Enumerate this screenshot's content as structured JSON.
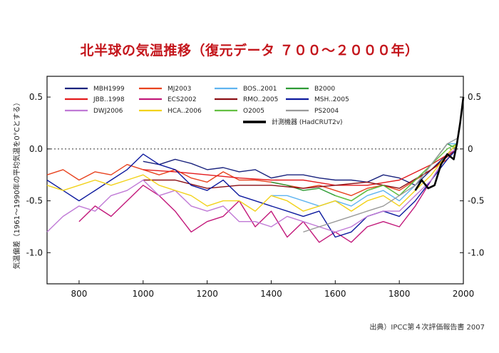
{
  "title": "北半球の気温推移（復元データ ７００〜２０００年）",
  "source": "出典）IPCC第４次評価報告書 2007",
  "chart_data": {
    "type": "line",
    "title": "北半球の気温推移（復元データ ７００〜２０００年）",
    "xlabel": "",
    "ylabel": "気温偏差（1961〜1990年の平均気温を0°Cとする）",
    "xlim": [
      700,
      2000
    ],
    "ylim": [
      -1.3,
      0.7
    ],
    "x_ticks": [
      "800",
      "1000",
      "1200",
      "1400",
      "1600",
      "1800",
      "2000"
    ],
    "y_ticks": [
      "0.5",
      "0.0",
      "-0.5",
      "-1.0"
    ],
    "y_ticks_right": [
      "0.5",
      "0",
      "-0.5",
      "-1.0"
    ],
    "zero_line": "dashed",
    "legend_position": "top-left",
    "series": [
      {
        "name": "MBH1999",
        "color": "#1a237e",
        "x": [
          1000,
          1050,
          1100,
          1150,
          1200,
          1250,
          1300,
          1350,
          1400,
          1450,
          1500,
          1550,
          1600,
          1650,
          1700,
          1750,
          1800,
          1850,
          1900,
          1950,
          1980
        ],
        "y": [
          -0.12,
          -0.15,
          -0.1,
          -0.14,
          -0.2,
          -0.18,
          -0.22,
          -0.2,
          -0.28,
          -0.25,
          -0.25,
          -0.28,
          -0.3,
          -0.3,
          -0.32,
          -0.25,
          -0.28,
          -0.35,
          -0.2,
          -0.05,
          0.05
        ]
      },
      {
        "name": "MJ2003",
        "color": "#e8431f",
        "x": [
          700,
          750,
          800,
          850,
          900,
          950,
          1000,
          1050,
          1100,
          1150,
          1200,
          1250,
          1300,
          1350,
          1400,
          1450,
          1500,
          1550,
          1600,
          1650,
          1700,
          1750,
          1800,
          1850,
          1900,
          1950,
          1980
        ],
        "y": [
          -0.25,
          -0.2,
          -0.3,
          -0.22,
          -0.25,
          -0.15,
          -0.2,
          -0.25,
          -0.2,
          -0.28,
          -0.32,
          -0.22,
          -0.3,
          -0.3,
          -0.32,
          -0.35,
          -0.38,
          -0.35,
          -0.4,
          -0.45,
          -0.38,
          -0.35,
          -0.4,
          -0.3,
          -0.2,
          -0.1,
          0.0
        ]
      },
      {
        "name": "BOS..2001",
        "color": "#5fb4f0",
        "x": [
          1400,
          1450,
          1500,
          1550,
          1600,
          1650,
          1700,
          1750,
          1800,
          1850,
          1900,
          1950,
          1980
        ],
        "y": [
          -0.45,
          -0.45,
          -0.5,
          -0.55,
          -0.5,
          -0.55,
          -0.45,
          -0.4,
          -0.5,
          -0.35,
          -0.15,
          0.05,
          0.05
        ]
      },
      {
        "name": "B2000",
        "color": "#2e9b35",
        "x": [
          1400,
          1450,
          1500,
          1550,
          1600,
          1650,
          1700,
          1750,
          1800,
          1850,
          1900,
          1950,
          1980
        ],
        "y": [
          -0.32,
          -0.35,
          -0.4,
          -0.38,
          -0.45,
          -0.5,
          -0.4,
          -0.35,
          -0.45,
          -0.3,
          -0.15,
          0.05,
          0.0
        ]
      },
      {
        "name": "JBB..1998",
        "color": "#e31a1c",
        "x": [
          1000,
          1100,
          1200,
          1300,
          1400,
          1500,
          1600,
          1700,
          1800,
          1900,
          1980
        ],
        "y": [
          -0.2,
          -0.22,
          -0.25,
          -0.28,
          -0.3,
          -0.3,
          -0.35,
          -0.35,
          -0.3,
          -0.15,
          0.0
        ]
      },
      {
        "name": "ECS2002",
        "color": "#c2187a",
        "x": [
          800,
          850,
          900,
          950,
          1000,
          1050,
          1100,
          1150,
          1200,
          1250,
          1300,
          1350,
          1400,
          1450,
          1500,
          1550,
          1600,
          1650,
          1700,
          1750,
          1800,
          1850,
          1900,
          1950,
          1980
        ],
        "y": [
          -0.7,
          -0.55,
          -0.65,
          -0.5,
          -0.35,
          -0.45,
          -0.6,
          -0.8,
          -0.7,
          -0.65,
          -0.5,
          -0.75,
          -0.6,
          -0.85,
          -0.7,
          -0.9,
          -0.8,
          -0.9,
          -0.75,
          -0.7,
          -0.75,
          -0.55,
          -0.3,
          -0.05,
          0.0
        ]
      },
      {
        "name": "RMO..2005",
        "color": "#8b0e14",
        "x": [
          1000,
          1100,
          1200,
          1300,
          1400,
          1500,
          1600,
          1700,
          1800,
          1900,
          1980
        ],
        "y": [
          -0.3,
          -0.3,
          -0.38,
          -0.35,
          -0.35,
          -0.38,
          -0.35,
          -0.32,
          -0.38,
          -0.2,
          0.0
        ]
      },
      {
        "name": "MSH..2005",
        "color": "#0d1a9e",
        "x": [
          700,
          750,
          800,
          850,
          900,
          950,
          1000,
          1050,
          1100,
          1150,
          1200,
          1250,
          1300,
          1350,
          1400,
          1450,
          1500,
          1550,
          1600,
          1650,
          1700,
          1750,
          1800,
          1850,
          1900,
          1950,
          1980
        ],
        "y": [
          -0.3,
          -0.4,
          -0.5,
          -0.4,
          -0.3,
          -0.2,
          -0.05,
          -0.15,
          -0.2,
          -0.35,
          -0.4,
          -0.3,
          -0.45,
          -0.5,
          -0.55,
          -0.6,
          -0.65,
          -0.6,
          -0.85,
          -0.8,
          -0.65,
          -0.6,
          -0.65,
          -0.5,
          -0.3,
          -0.1,
          0.0
        ]
      },
      {
        "name": "DWJ2006",
        "color": "#c07ad6",
        "x": [
          700,
          750,
          800,
          850,
          900,
          950,
          1000,
          1050,
          1100,
          1150,
          1200,
          1250,
          1300,
          1350,
          1400,
          1450,
          1500,
          1550,
          1600,
          1650,
          1700,
          1750,
          1800,
          1850,
          1900,
          1950,
          1980
        ],
        "y": [
          -0.8,
          -0.65,
          -0.55,
          -0.6,
          -0.45,
          -0.4,
          -0.3,
          -0.45,
          -0.4,
          -0.55,
          -0.6,
          -0.55,
          -0.7,
          -0.7,
          -0.75,
          -0.65,
          -0.7,
          -0.75,
          -0.8,
          -0.75,
          -0.65,
          -0.6,
          -0.6,
          -0.45,
          -0.3,
          -0.05,
          0.0
        ]
      },
      {
        "name": "HCA..2006",
        "color": "#f2d21b",
        "x": [
          700,
          750,
          800,
          850,
          900,
          950,
          1000,
          1050,
          1100,
          1150,
          1200,
          1250,
          1300,
          1350,
          1400,
          1450,
          1500,
          1550,
          1600,
          1650,
          1700,
          1750,
          1800,
          1850,
          1900,
          1950,
          1980
        ],
        "y": [
          -0.35,
          -0.4,
          -0.35,
          -0.3,
          -0.35,
          -0.3,
          -0.25,
          -0.35,
          -0.4,
          -0.45,
          -0.55,
          -0.5,
          -0.5,
          -0.6,
          -0.45,
          -0.5,
          -0.6,
          -0.55,
          -0.5,
          -0.6,
          -0.5,
          -0.45,
          -0.55,
          -0.4,
          -0.25,
          -0.05,
          0.05
        ]
      },
      {
        "name": "O2005",
        "color": "#64c043",
        "x": [
          1600,
          1650,
          1700,
          1750,
          1800,
          1850,
          1900,
          1950,
          1980
        ],
        "y": [
          -0.45,
          -0.5,
          -0.4,
          -0.35,
          -0.45,
          -0.3,
          -0.15,
          0.0,
          0.05
        ]
      },
      {
        "name": "PS2004",
        "color": "#9a9a9a",
        "x": [
          1500,
          1550,
          1600,
          1650,
          1700,
          1750,
          1800,
          1850,
          1900,
          1950,
          1980
        ],
        "y": [
          -0.8,
          -0.75,
          -0.7,
          -0.65,
          -0.6,
          -0.55,
          -0.45,
          -0.35,
          -0.15,
          0.05,
          0.1
        ]
      },
      {
        "name": "計測機器 (HadCRUT2v)",
        "color": "#000000",
        "x": [
          1850,
          1870,
          1890,
          1910,
          1930,
          1950,
          1970,
          1980,
          1990,
          2000
        ],
        "y": [
          -0.4,
          -0.3,
          -0.38,
          -0.35,
          -0.15,
          -0.05,
          -0.1,
          0.05,
          0.25,
          0.5
        ]
      }
    ]
  }
}
